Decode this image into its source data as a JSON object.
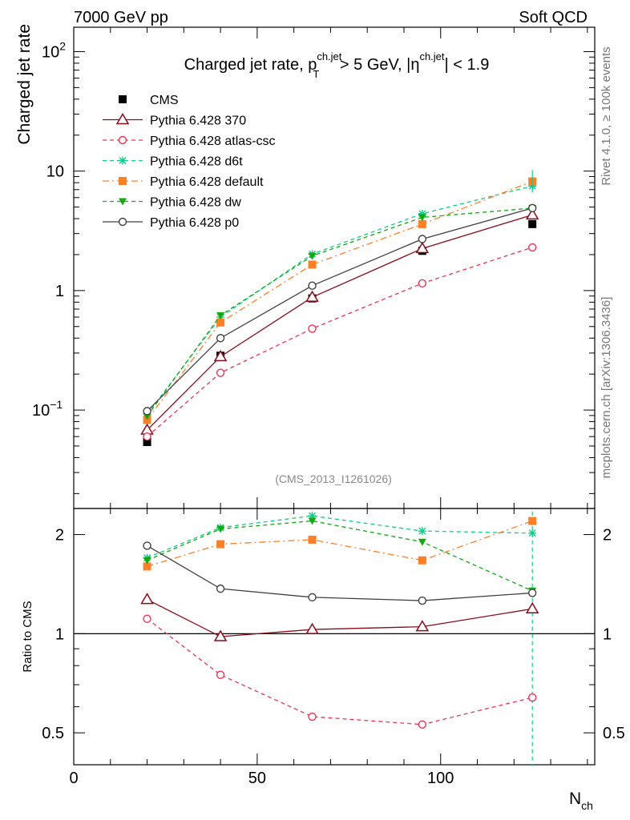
{
  "header": {
    "left": "7000 GeV pp",
    "right": "Soft QCD"
  },
  "side": {
    "rivet": "Rivet 4.1.0, ≥ 100k events",
    "mcplots": "mcplots.cern.ch [arXiv:1306.3436]"
  },
  "colors": {
    "CMS": "#000000",
    "p370": "#8b0a1a",
    "atlas": "#ee3355",
    "d6t": "#11cc88",
    "default": "#ff7f27",
    "dw": "#11aa11",
    "p0": "#404040"
  },
  "chart_data": [
    {
      "type": "line",
      "panel": "main",
      "title": "Charged jet rate, p_T^{ch.jet} > 5 GeV, |η^{ch.jet}| < 1.9",
      "title_parts": {
        "prefix": "Charged jet rate, p",
        "pt_sup": "ch.jet",
        "pt_sub": "T",
        "mid": " > 5 GeV,  |η",
        "eta_sup": "ch.jet",
        "suffix": "| < 1.9"
      },
      "ylabel": "Charged jet rate",
      "yscale": "log",
      "ylim": [
        0.015,
        160
      ],
      "xlim": [
        0,
        142
      ],
      "yticks": [
        {
          "value": 0.1,
          "label": "10",
          "sup": "−1"
        },
        {
          "value": 1,
          "label": "1",
          "sup": ""
        },
        {
          "value": 10,
          "label": "10",
          "sup": ""
        },
        {
          "value": 100,
          "label": "10",
          "sup": "2"
        }
      ],
      "watermark": "(CMS_2013_I1261026)",
      "legend_position": "top-left",
      "x": [
        20,
        40,
        65,
        95,
        125
      ],
      "series": [
        {
          "name": "CMS",
          "key": "CMS",
          "values": [
            0.054,
            0.285,
            0.86,
            2.15,
            3.6
          ]
        },
        {
          "name": "Pythia 6.428 370",
          "key": "p370",
          "values": [
            0.068,
            0.28,
            0.88,
            2.25,
            4.3
          ]
        },
        {
          "name": "Pythia 6.428 atlas-csc",
          "key": "atlas",
          "values": [
            0.06,
            0.205,
            0.48,
            1.15,
            2.3
          ]
        },
        {
          "name": "Pythia 6.428 d6t",
          "key": "d6t",
          "values": [
            0.092,
            0.6,
            2.02,
            4.4,
            7.5
          ]
        },
        {
          "name": "Pythia 6.428 default",
          "key": "default",
          "values": [
            0.083,
            0.54,
            1.65,
            3.6,
            8.2
          ]
        },
        {
          "name": "Pythia 6.428 dw",
          "key": "dw",
          "values": [
            0.089,
            0.62,
            1.95,
            4.1,
            4.9
          ]
        },
        {
          "name": "Pythia 6.428 p0",
          "key": "p0",
          "values": [
            0.098,
            0.4,
            1.1,
            2.7,
            4.9
          ]
        }
      ]
    },
    {
      "type": "line",
      "panel": "ratio",
      "ylabel": "Ratio to CMS",
      "xlabel": "N",
      "xlabel_sub": "ch",
      "yscale": "log",
      "ylim": [
        0.4,
        2.4
      ],
      "xlim": [
        0,
        142
      ],
      "xticks": [
        0,
        50,
        100
      ],
      "yticks": [
        {
          "value": 0.5,
          "label": "0.5"
        },
        {
          "value": 1,
          "label": "1"
        },
        {
          "value": 2,
          "label": "2"
        }
      ],
      "x": [
        20,
        40,
        65,
        95,
        125
      ],
      "series": [
        {
          "key": "p370",
          "values": [
            1.27,
            0.98,
            1.03,
            1.05,
            1.19
          ]
        },
        {
          "key": "atlas",
          "values": [
            1.11,
            0.75,
            0.56,
            0.53,
            0.64
          ]
        },
        {
          "key": "d6t",
          "values": [
            1.7,
            2.1,
            2.28,
            2.05,
            2.02
          ]
        },
        {
          "key": "default",
          "values": [
            1.6,
            1.87,
            1.93,
            1.67,
            2.2
          ]
        },
        {
          "key": "dw",
          "values": [
            1.67,
            2.08,
            2.2,
            1.9,
            1.35
          ]
        },
        {
          "key": "p0",
          "values": [
            1.85,
            1.37,
            1.29,
            1.26,
            1.33
          ]
        }
      ]
    }
  ]
}
